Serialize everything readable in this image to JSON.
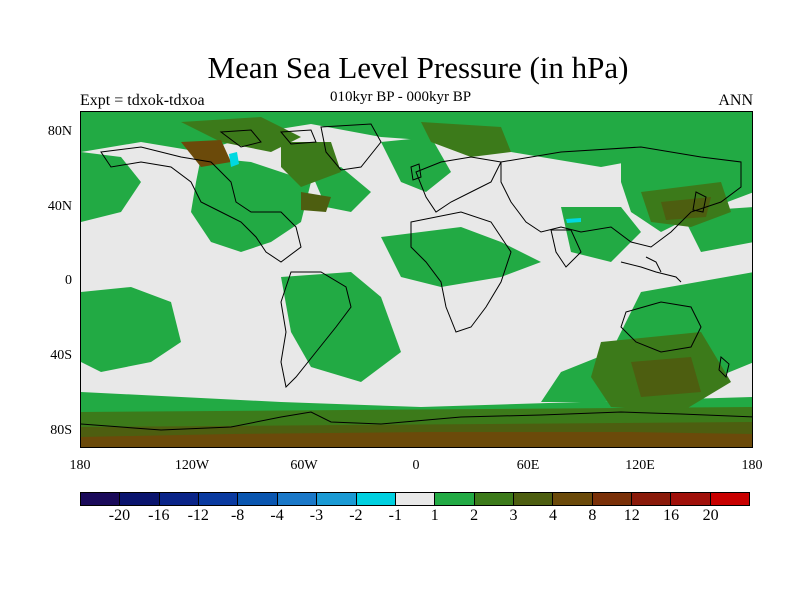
{
  "header": {
    "title": "Mean Sea Level Pressure (in hPa)",
    "left_label": "Expt = tdxok-tdxoa",
    "center_label": "010kyr BP - 000kyr BP",
    "right_label": "ANN"
  },
  "map": {
    "lat_ticks": [
      "80N",
      "40N",
      "0",
      "40S",
      "80S"
    ],
    "lon_ticks": [
      "180",
      "120W",
      "60W",
      "0",
      "60E",
      "120E",
      "180"
    ],
    "colors": {
      "light_grey": "#e8e8e8",
      "green": "#22aa44",
      "olive_green": "#3c7a1a",
      "dark_olive": "#4d5e10",
      "brown": "#6b4a0a",
      "cyan": "#00d8e0",
      "coastline": "#000000"
    }
  },
  "legend": {
    "colors": [
      "#1a0a5a",
      "#0a146e",
      "#0a2488",
      "#0a3aa0",
      "#0a56b0",
      "#1a78c8",
      "#1a9ad4",
      "#00d0e0",
      "#e8e8e8",
      "#22aa44",
      "#3c7a1a",
      "#4d5e10",
      "#6b4a0a",
      "#7a3008",
      "#8a1a0a",
      "#a0100a",
      "#c80000"
    ],
    "labels": [
      "-20",
      "-16",
      "-12",
      "-8",
      "-4",
      "-3",
      "-2",
      "-1",
      "1",
      "2",
      "3",
      "4",
      "8",
      "12",
      "16",
      "20"
    ]
  }
}
